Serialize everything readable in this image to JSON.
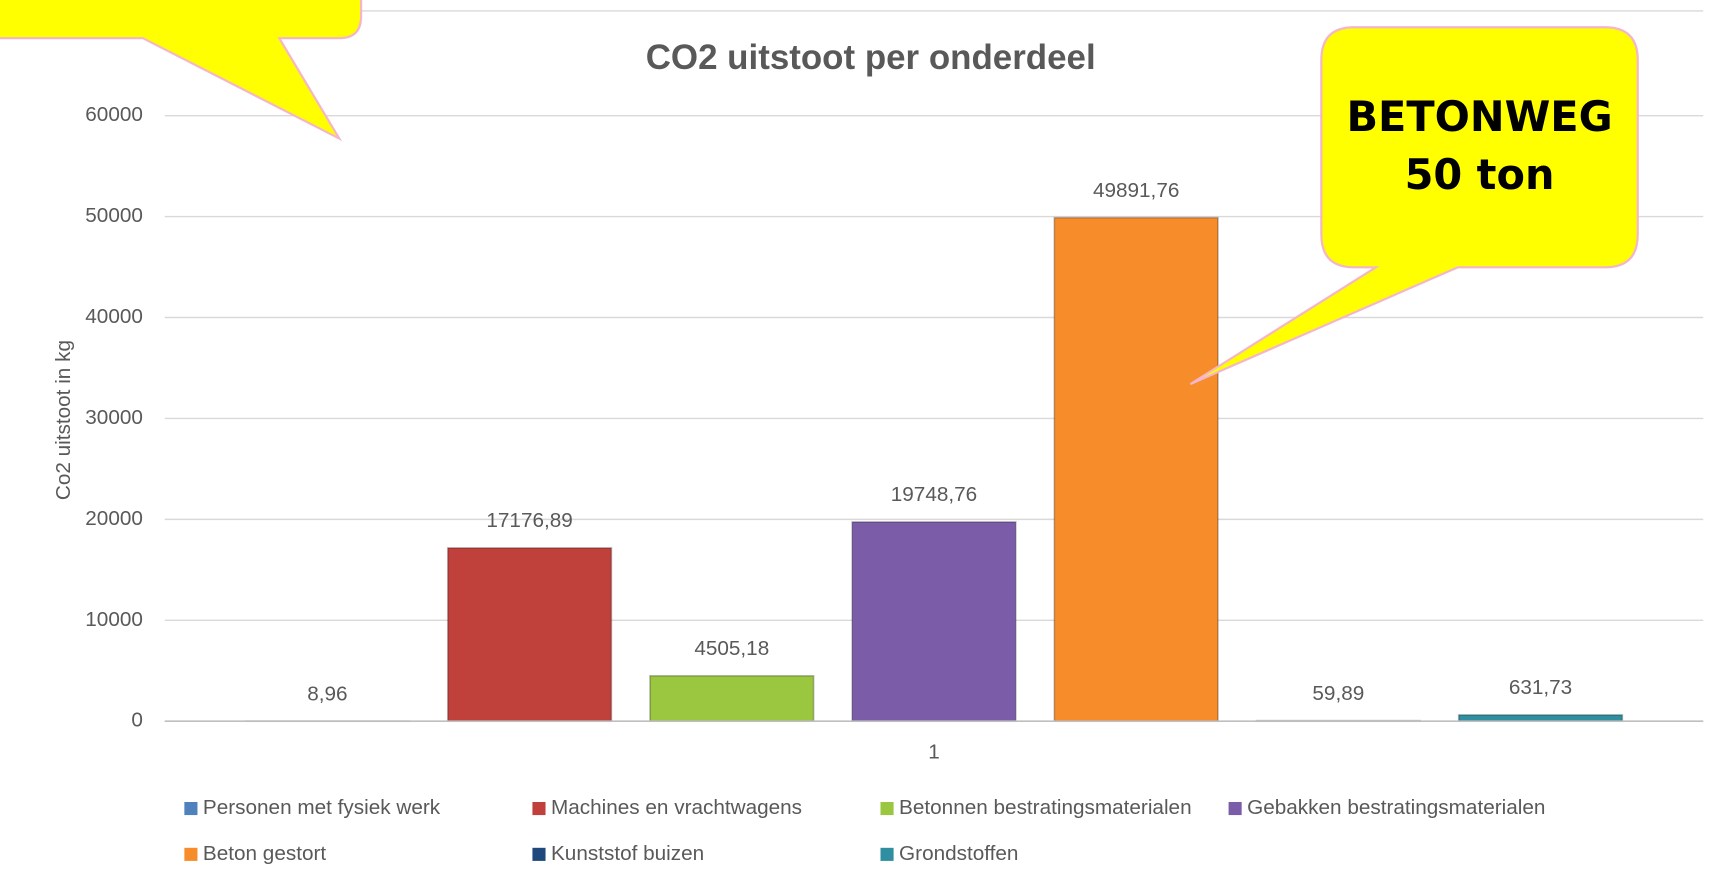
{
  "chart_data": {
    "type": "bar",
    "title": "CO2 uitstoot per onderdeel",
    "ylabel": "Co2 uitstoot in kg",
    "categories": [
      "1"
    ],
    "series": [
      {
        "name": "Personen met fysiek werk",
        "color": "#4f81bd",
        "values": [
          8.96
        ],
        "value_labels": [
          "8,96"
        ]
      },
      {
        "name": "Machines en vrachtwagens",
        "color": "#c0403c",
        "values": [
          17176.89
        ],
        "value_labels": [
          "17176,89"
        ]
      },
      {
        "name": "Betonnen bestratingsmaterialen",
        "color": "#9bc63f",
        "values": [
          4505.18
        ],
        "value_labels": [
          "4505,18"
        ]
      },
      {
        "name": "Gebakken bestratingsmaterialen",
        "color": "#7b5ca8",
        "values": [
          19748.76
        ],
        "value_labels": [
          "19748,76"
        ]
      },
      {
        "name": "Beton gestort",
        "color": "#f68d2a",
        "values": [
          49891.76
        ],
        "value_labels": [
          "49891,76"
        ]
      },
      {
        "name": "Kunststof buizen",
        "color": "#1f497d",
        "values": [
          59.89
        ],
        "value_labels": [
          "59,89"
        ]
      },
      {
        "name": "Grondstoffen",
        "color": "#2f8ea0",
        "values": [
          631.73
        ],
        "value_labels": [
          "631,73"
        ]
      }
    ],
    "ylim": [
      0,
      70000
    ],
    "yticks": [
      0,
      10000,
      20000,
      30000,
      40000,
      50000,
      60000
    ],
    "grid": true,
    "legend": "bottom",
    "annotation": [
      "BETONWEG",
      "50 ton"
    ]
  }
}
